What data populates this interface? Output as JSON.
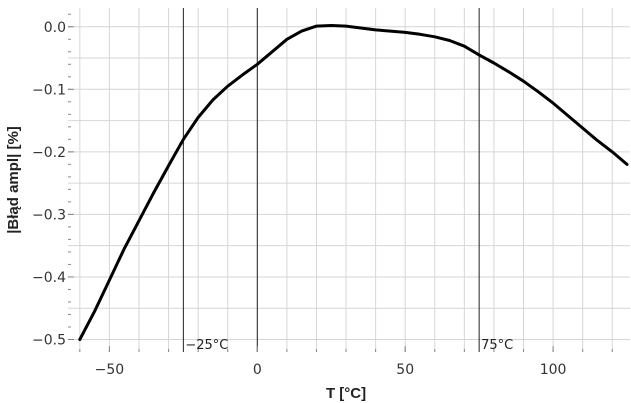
{
  "chart_data": {
    "type": "line",
    "title": "",
    "xlabel": "T   [°C]",
    "ylabel": "|Błąd ampl| [%]",
    "xlim": [
      -64,
      126
    ],
    "ylim": [
      -0.52,
      0.03
    ],
    "grid": true,
    "x_ticks": [
      -50,
      0,
      50,
      100
    ],
    "x_tick_labels": [
      "−50",
      "0",
      "50",
      "100"
    ],
    "y_ticks": [
      0.0,
      -0.1,
      -0.2,
      -0.3,
      -0.4,
      -0.5
    ],
    "y_tick_labels": [
      "0.0",
      "−0.1",
      "−0.2",
      "−0.3",
      "−0.4",
      "−0.5"
    ],
    "series": [
      {
        "x": [
          -60,
          -55,
          -50,
          -45,
          -40,
          -35,
          -30,
          -25,
          -20,
          -15,
          -10,
          -5,
          0,
          5,
          10,
          15,
          20,
          25,
          30,
          35,
          40,
          45,
          50,
          55,
          60,
          65,
          70,
          75,
          80,
          85,
          90,
          95,
          100,
          105,
          110,
          115,
          120,
          125
        ],
        "values": [
          -0.5,
          -0.455,
          -0.405,
          -0.355,
          -0.31,
          -0.265,
          -0.222,
          -0.18,
          -0.145,
          -0.117,
          -0.095,
          -0.077,
          -0.06,
          -0.04,
          -0.02,
          -0.007,
          0.001,
          0.002,
          0.001,
          -0.002,
          -0.005,
          -0.007,
          -0.009,
          -0.012,
          -0.016,
          -0.022,
          -0.031,
          -0.045,
          -0.058,
          -0.072,
          -0.087,
          -0.104,
          -0.122,
          -0.142,
          -0.162,
          -0.182,
          -0.2,
          -0.22
        ],
        "color": "#000000"
      }
    ],
    "annotations": [
      {
        "x": -25,
        "label": "−25°C"
      },
      {
        "x": 75,
        "label": "75°C"
      }
    ]
  }
}
